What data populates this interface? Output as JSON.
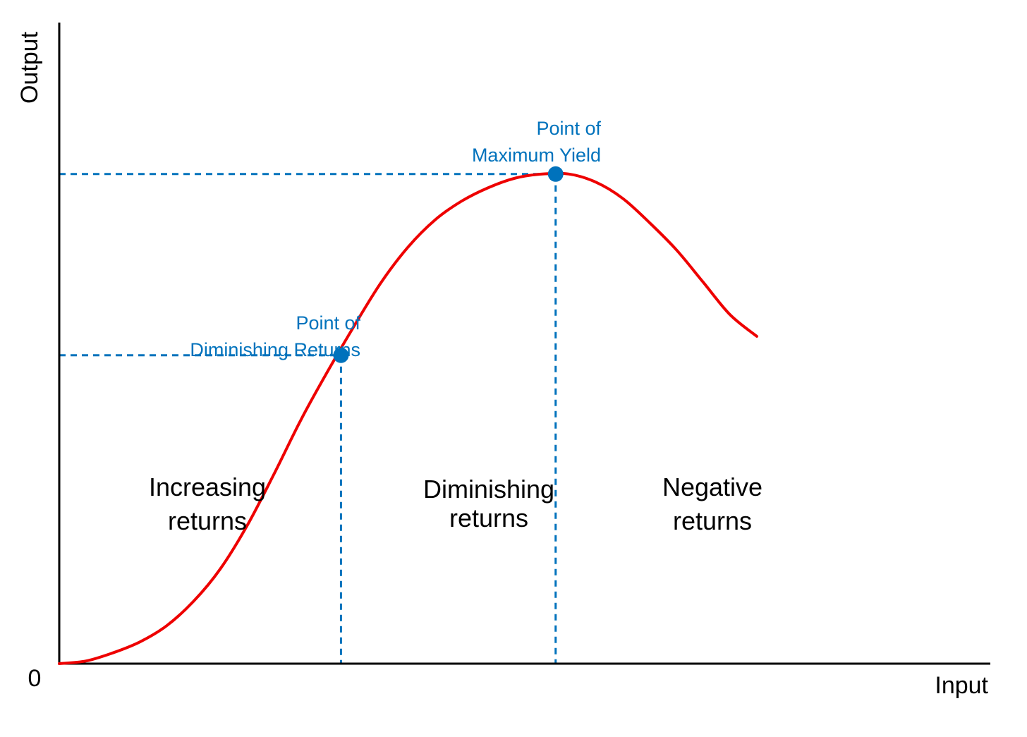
{
  "chart_data": {
    "type": "line",
    "xlabel": "Input",
    "ylabel": "Output",
    "origin_label": "0",
    "series": [
      {
        "x": [
          0,
          0.5,
          1,
          1.5,
          2,
          2.5,
          3,
          3.5,
          4,
          4.5,
          5,
          5.5,
          6,
          6.5,
          7,
          7.5,
          8,
          8.5,
          9,
          9.5,
          10,
          10.5,
          11,
          11.5,
          12,
          12.5,
          13
        ],
        "values": [
          0,
          0.1,
          0.4,
          0.8,
          1.4,
          2.3,
          3.5,
          5.1,
          7.0,
          9.0,
          10.8,
          12.5,
          14.1,
          15.4,
          16.4,
          17.1,
          17.6,
          17.95,
          18.1,
          18.1,
          17.8,
          17.2,
          16.3,
          15.3,
          14.1,
          12.9,
          12.1
        ]
      }
    ],
    "xlim": [
      0,
      17.35
    ],
    "ylim": [
      0,
      23.7
    ],
    "points": [
      {
        "label_lines": [
          "Point of",
          "Diminishing Returns"
        ],
        "x": 5.25,
        "y": 11.4
      },
      {
        "label_lines": [
          "Point of",
          "Maximum Yield"
        ],
        "x": 9.25,
        "y": 18.1
      }
    ],
    "regions": [
      {
        "lines": [
          "Increasing",
          "returns"
        ]
      },
      {
        "lines": [
          "Diminishing",
          "returns"
        ]
      },
      {
        "lines": [
          "Negative",
          "returns"
        ]
      }
    ],
    "colors": {
      "curve": "#ee0000",
      "guides": "#0072bc",
      "points": "#0072bc",
      "annotations": "#0072bc",
      "axes": "#000000"
    },
    "grid": false,
    "legend": "none"
  }
}
